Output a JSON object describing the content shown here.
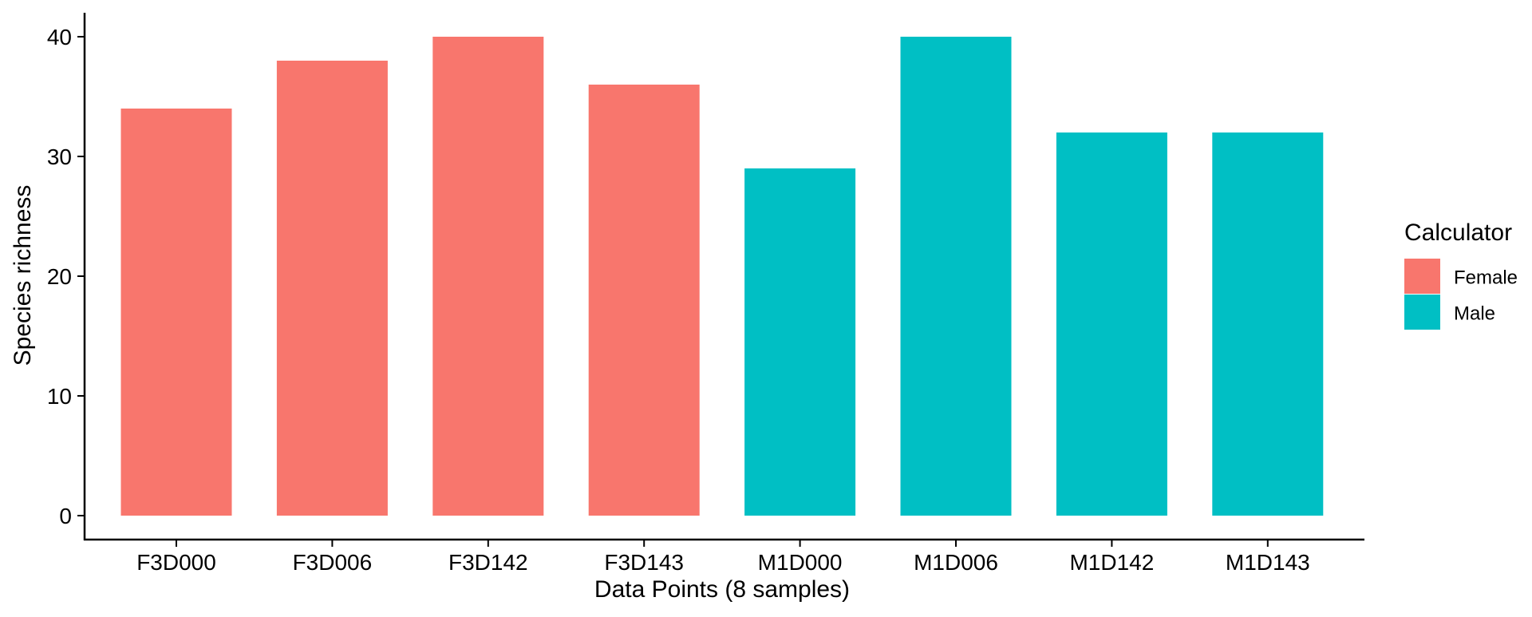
{
  "chart_data": {
    "type": "bar",
    "title": "",
    "xlabel": "Data Points (8 samples)",
    "ylabel": "Species richness",
    "ylim": [
      0,
      42
    ],
    "yticks": [
      0,
      10,
      20,
      30,
      40
    ],
    "grid": false,
    "categories": [
      "F3D000",
      "F3D006",
      "F3D142",
      "F3D143",
      "M1D000",
      "M1D006",
      "M1D142",
      "M1D143"
    ],
    "values": [
      34,
      38,
      40,
      36,
      29,
      40,
      32,
      32
    ],
    "groups": [
      "Female",
      "Female",
      "Female",
      "Female",
      "Male",
      "Male",
      "Male",
      "Male"
    ],
    "legend": {
      "title": "Calculator",
      "position": "right",
      "entries": [
        {
          "label": "Female",
          "color": "#F8766D"
        },
        {
          "label": "Male",
          "color": "#00BFC4"
        }
      ]
    }
  }
}
